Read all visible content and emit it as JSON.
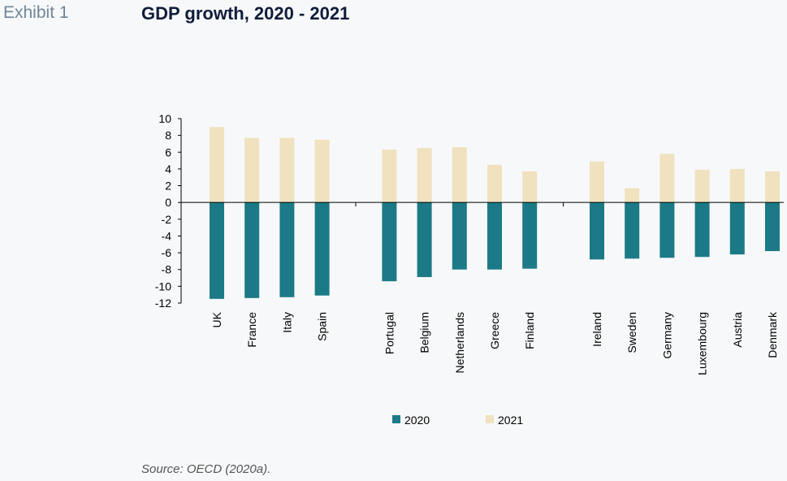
{
  "header": {
    "exhibit": "Exhibit 1",
    "title": "GDP growth, 2020 - 2021"
  },
  "footer": {
    "source": "Source: OECD (2020a)."
  },
  "chart_data": {
    "type": "bar",
    "title": "GDP growth, 2020 - 2021",
    "xlabel": "",
    "ylabel": "",
    "ylim": [
      -12,
      10
    ],
    "yticks": [
      10,
      8,
      6,
      4,
      2,
      0,
      -2,
      -4,
      -6,
      -8,
      -10,
      -12
    ],
    "grid": false,
    "legend_position": "bottom",
    "bar_layout": "overlapping",
    "groups": [
      [
        "UK",
        "France",
        "Italy",
        "Spain"
      ],
      [
        "Portugal",
        "Belgium",
        "Netherlands",
        "Greece",
        "Finland"
      ],
      [
        "Ireland",
        "Sweden",
        "Germany",
        "Luxembourg",
        "Austria",
        "Denmark"
      ]
    ],
    "categories": [
      "UK",
      "France",
      "Italy",
      "Spain",
      "Portugal",
      "Belgium",
      "Netherlands",
      "Greece",
      "Finland",
      "Ireland",
      "Sweden",
      "Germany",
      "Luxembourg",
      "Austria",
      "Denmark"
    ],
    "series": [
      {
        "name": "2020",
        "color": "#1b7a86",
        "values": [
          -11.5,
          -11.4,
          -11.3,
          -11.1,
          -9.4,
          -8.9,
          -8.0,
          -8.0,
          -7.9,
          -6.8,
          -6.7,
          -6.6,
          -6.5,
          -6.2,
          -5.8
        ]
      },
      {
        "name": "2021",
        "color": "#f0e2bf",
        "values": [
          9.0,
          7.7,
          7.7,
          7.5,
          6.3,
          6.5,
          6.6,
          4.5,
          3.7,
          4.9,
          1.7,
          5.8,
          3.9,
          4.0,
          3.7
        ]
      }
    ]
  }
}
